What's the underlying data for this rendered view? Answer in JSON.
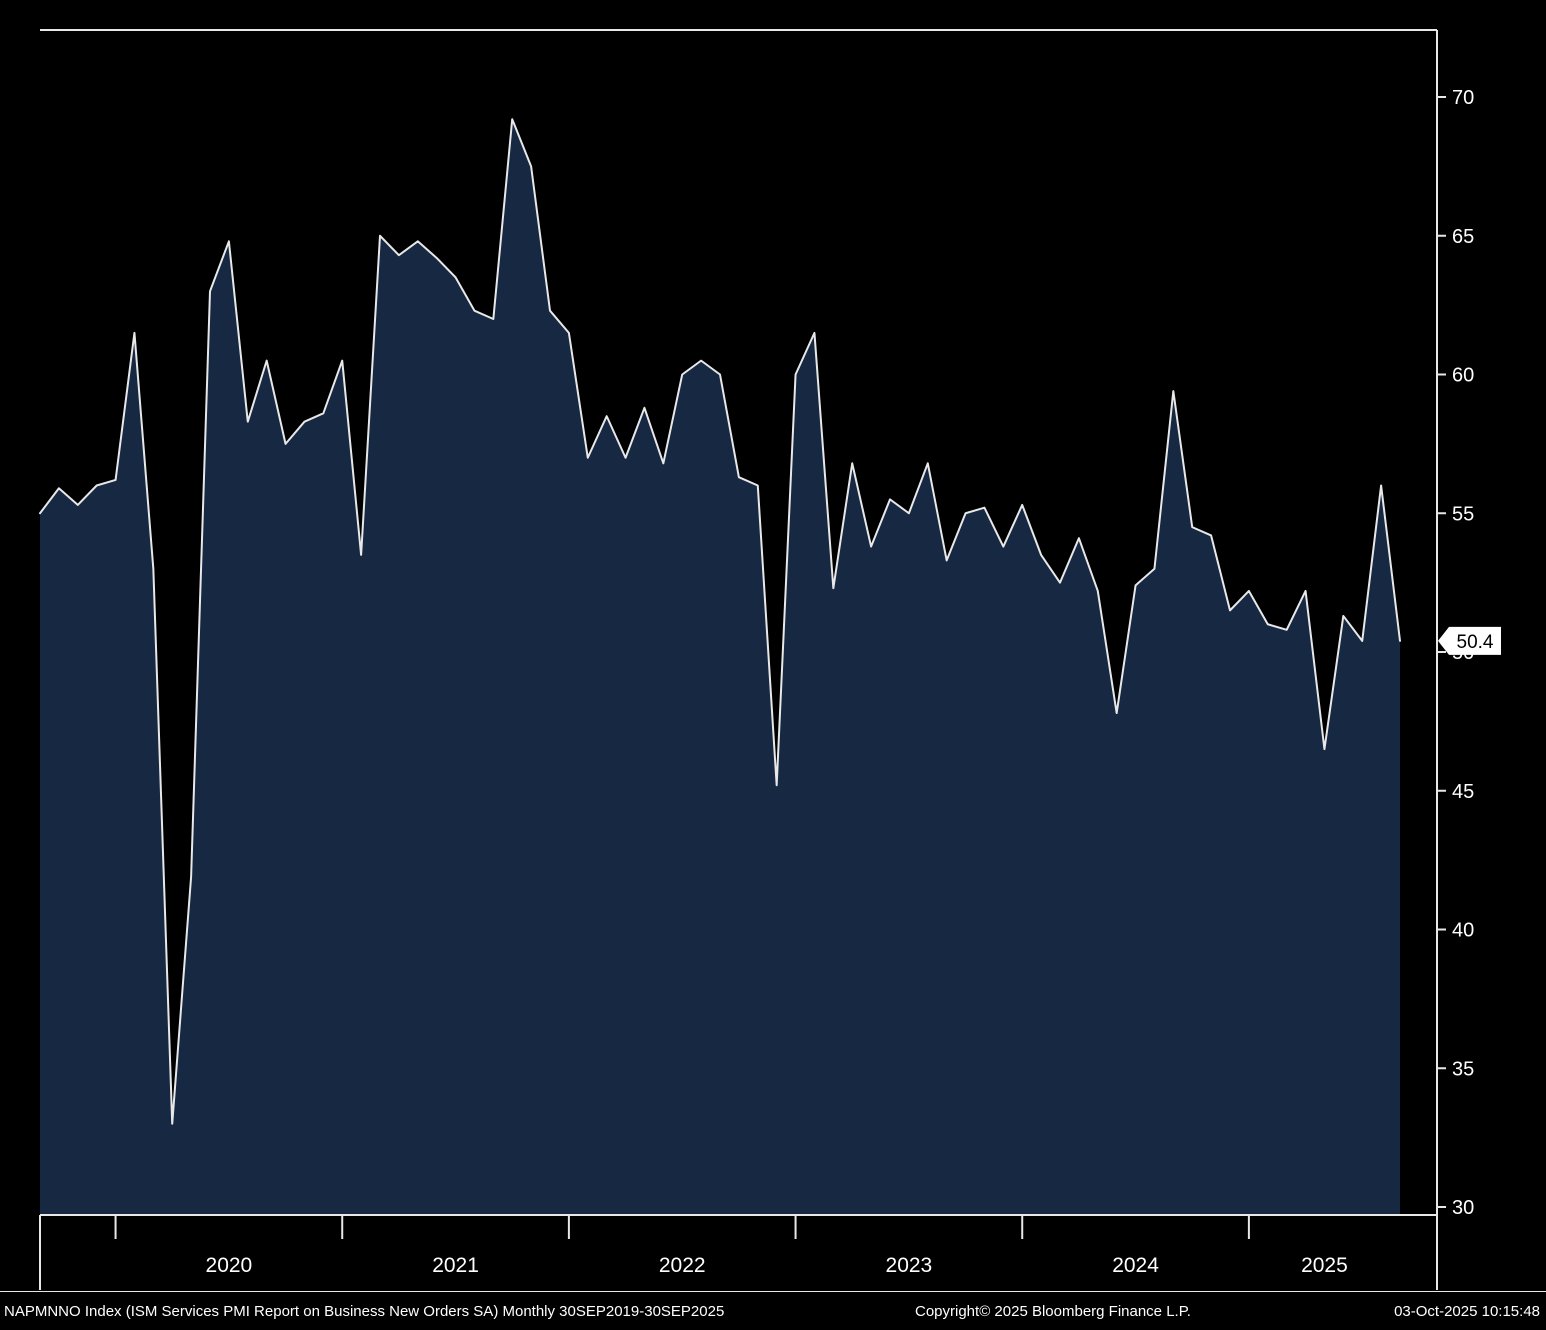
{
  "chart_data": {
    "type": "area",
    "title": "ISM Services PMI Report on Business New Orders SA",
    "ticker": "NAPMNNO Index",
    "frequency": "Monthly",
    "period": "30SEP2019-30SEP2025",
    "x": [
      "2019-09",
      "2019-10",
      "2019-11",
      "2019-12",
      "2020-01",
      "2020-02",
      "2020-03",
      "2020-04",
      "2020-05",
      "2020-06",
      "2020-07",
      "2020-08",
      "2020-09",
      "2020-10",
      "2020-11",
      "2020-12",
      "2021-01",
      "2021-02",
      "2021-03",
      "2021-04",
      "2021-05",
      "2021-06",
      "2021-07",
      "2021-08",
      "2021-09",
      "2021-10",
      "2021-11",
      "2021-12",
      "2022-01",
      "2022-02",
      "2022-03",
      "2022-04",
      "2022-05",
      "2022-06",
      "2022-07",
      "2022-08",
      "2022-09",
      "2022-10",
      "2022-11",
      "2022-12",
      "2023-01",
      "2023-02",
      "2023-03",
      "2023-04",
      "2023-05",
      "2023-06",
      "2023-07",
      "2023-08",
      "2023-09",
      "2023-10",
      "2023-11",
      "2023-12",
      "2024-01",
      "2024-02",
      "2024-03",
      "2024-04",
      "2024-05",
      "2024-06",
      "2024-07",
      "2024-08",
      "2024-09",
      "2024-10",
      "2024-11",
      "2024-12",
      "2025-01",
      "2025-02",
      "2025-03",
      "2025-04",
      "2025-05",
      "2025-06",
      "2025-07",
      "2025-08",
      "2025-09"
    ],
    "values": [
      55.0,
      55.9,
      55.3,
      56.0,
      56.2,
      61.5,
      53.0,
      33.0,
      41.9,
      63.0,
      64.8,
      58.3,
      60.5,
      57.5,
      58.3,
      58.6,
      60.5,
      53.5,
      65.0,
      64.3,
      64.8,
      64.2,
      63.5,
      62.3,
      62.0,
      69.2,
      67.5,
      62.3,
      61.5,
      57.0,
      58.5,
      57.0,
      58.8,
      56.8,
      60.0,
      60.5,
      60.0,
      56.3,
      56.0,
      45.2,
      60.0,
      61.5,
      52.3,
      56.8,
      53.8,
      55.5,
      55.0,
      56.8,
      53.3,
      55.0,
      55.2,
      53.8,
      55.3,
      53.5,
      52.5,
      54.1,
      52.2,
      47.8,
      52.4,
      53.0,
      59.4,
      54.5,
      54.2,
      51.5,
      52.2,
      51.0,
      50.8,
      52.2,
      46.5,
      51.3,
      50.4,
      56.0,
      50.4
    ],
    "y_ticks": [
      30,
      35,
      40,
      45,
      50,
      55,
      60,
      65,
      70
    ],
    "ylim": [
      29.7,
      72.4
    ],
    "x_year_labels": [
      "2020",
      "2021",
      "2022",
      "2023",
      "2024",
      "2025"
    ],
    "last_value": "50.4",
    "legend_position": "none",
    "grid": false,
    "colors": {
      "background": "#000000",
      "area_fill": "#172843",
      "line": "#e8e8e8",
      "axis": "#e8e8e8",
      "tag_bg": "#ffffff",
      "tag_text": "#000000",
      "tick_text": "#ffffff"
    }
  },
  "footer": {
    "left": "NAPMNNO Index (ISM Services PMI Report on Business New Orders SA) Monthly 30SEP2019-30SEP2025",
    "center": "Copyright© 2025 Bloomberg Finance L.P.",
    "right": "03-Oct-2025 10:15:48"
  }
}
